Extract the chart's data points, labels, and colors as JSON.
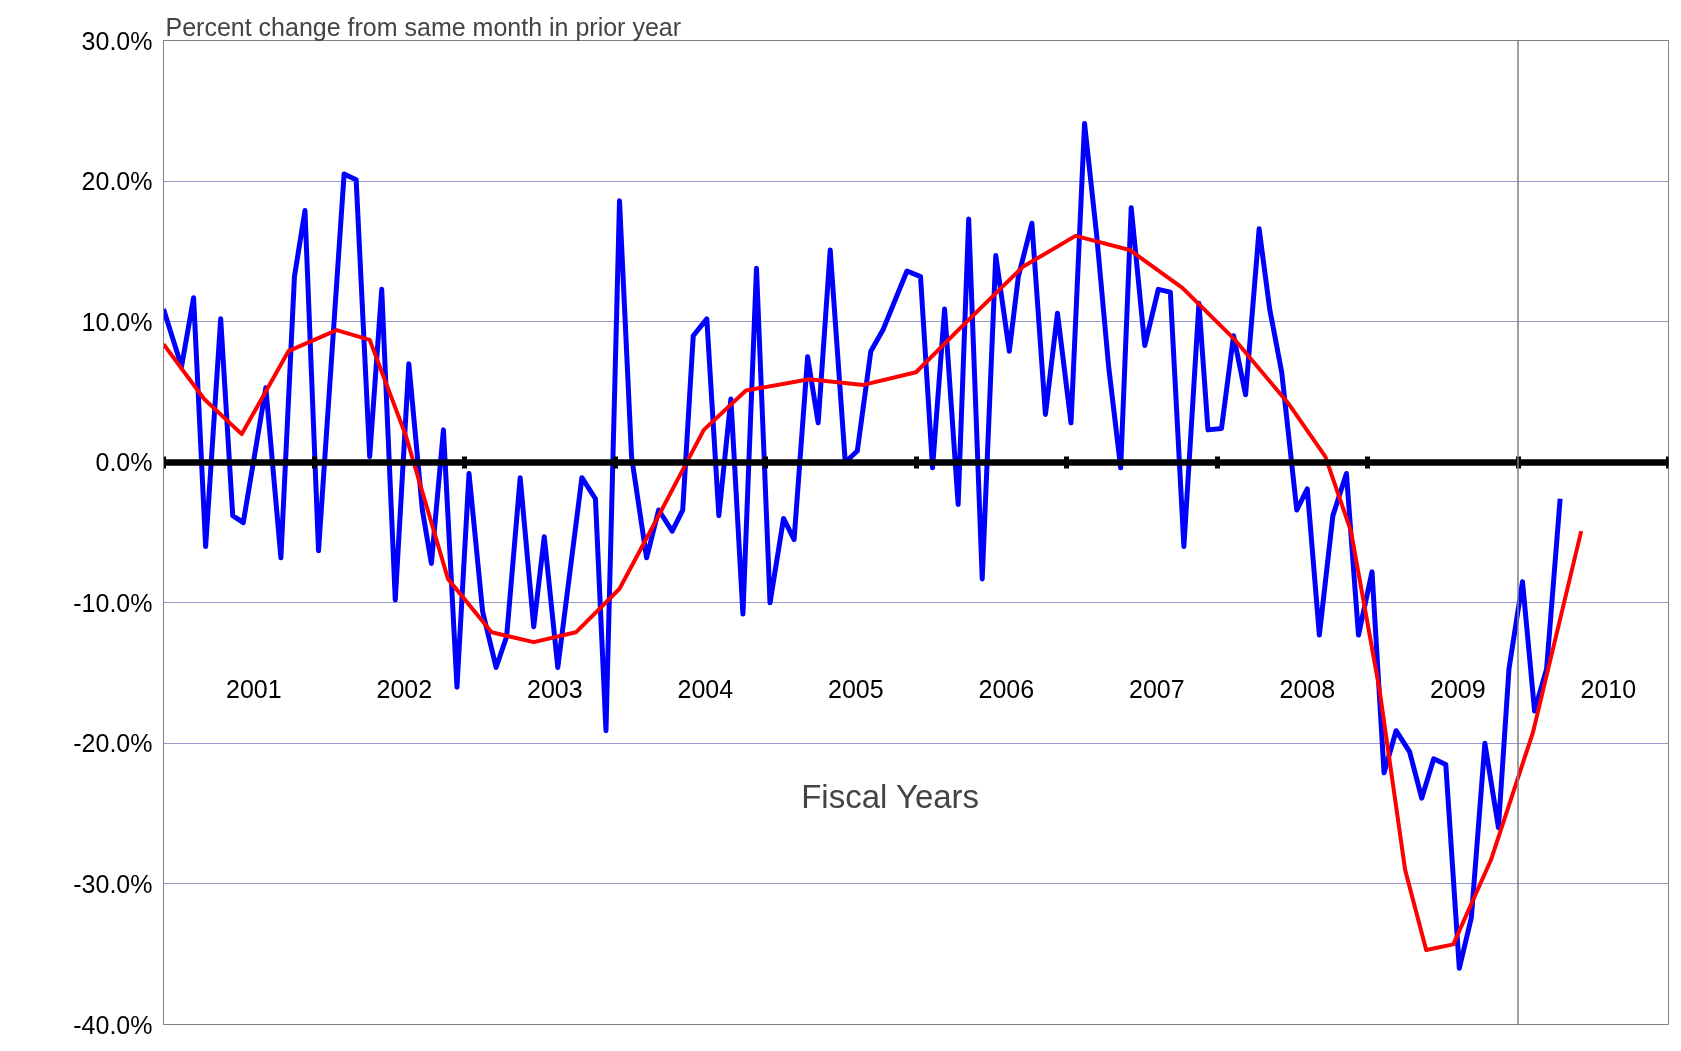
{
  "chart_data": {
    "type": "line",
    "title": "Percent change from same month in prior year",
    "xlabel": "Fiscal Years",
    "xlim": [
      2000.4,
      2010.4
    ],
    "ylim": [
      -40,
      30
    ],
    "xticks": [
      {
        "value": 2000.4,
        "label": null
      },
      {
        "value": 2001.4,
        "label": null
      },
      {
        "value": 2002.4,
        "label": null
      },
      {
        "value": 2003.4,
        "label": null
      },
      {
        "value": 2004.4,
        "label": null
      },
      {
        "value": 2005.4,
        "label": null
      },
      {
        "value": 2006.4,
        "label": null
      },
      {
        "value": 2007.4,
        "label": null
      },
      {
        "value": 2008.4,
        "label": null
      },
      {
        "value": 2009.4,
        "label": null
      },
      {
        "value": 2010.4,
        "label": null
      },
      2001,
      2002,
      2003,
      2004,
      2005,
      2006,
      2007,
      2008,
      2009,
      2010
    ],
    "yticks": [
      {
        "value": 30,
        "label": "30.0%"
      },
      {
        "value": 20,
        "label": "20.0%"
      },
      {
        "value": 10,
        "label": "10.0%"
      },
      {
        "value": 0,
        "label": "0.0%"
      },
      {
        "value": -10,
        "label": "-10.0%"
      },
      {
        "value": -20,
        "label": "-20.0%"
      },
      {
        "value": -30,
        "label": "-30.0%"
      },
      {
        "value": -40,
        "label": "-40.0%"
      }
    ],
    "grid": "y",
    "line_style": "solid",
    "marker": "none",
    "series": [
      {
        "color": "#0000ff",
        "x": [
          2000.4,
          2000.52,
          2000.6,
          2000.68,
          2000.78,
          2000.86,
          2000.93,
          2001.08,
          2001.18,
          2001.27,
          2001.34,
          2001.43,
          2001.6,
          2001.68,
          2001.77,
          2001.85,
          2001.94,
          2002.03,
          2002.12,
          2002.18,
          2002.26,
          2002.35,
          2002.43,
          2002.52,
          2002.61,
          2002.68,
          2002.77,
          2002.86,
          2002.93,
          2003.02,
          2003.18,
          2003.27,
          2003.34,
          2003.43,
          2003.51,
          2003.61,
          2003.69,
          2003.78,
          2003.85,
          2003.92,
          2004.01,
          2004.09,
          2004.17,
          2004.25,
          2004.34,
          2004.43,
          2004.52,
          2004.59,
          2004.68,
          2004.75,
          2004.83,
          2004.93,
          2005.01,
          2005.1,
          2005.18,
          2005.34,
          2005.43,
          2005.51,
          2005.59,
          2005.68,
          2005.75,
          2005.84,
          2005.93,
          2006.02,
          2006.08,
          2006.17,
          2006.26,
          2006.34,
          2006.43,
          2006.52,
          2006.6,
          2006.68,
          2006.76,
          2006.83,
          2006.92,
          2007.01,
          2007.09,
          2007.18,
          2007.28,
          2007.34,
          2007.43,
          2007.51,
          2007.59,
          2007.68,
          2007.75,
          2007.83,
          2007.93,
          2008.0,
          2008.08,
          2008.17,
          2008.26,
          2008.34,
          2008.43,
          2008.51,
          2008.59,
          2008.68,
          2008.76,
          2008.84,
          2008.92,
          2009.01,
          2009.09,
          2009.18,
          2009.27,
          2009.34,
          2009.43,
          2009.51,
          2009.59,
          2009.68
        ],
        "values": [
          10.9,
          6.8,
          11.7,
          -6,
          10.2,
          -3.8,
          -4.3,
          5.3,
          -6.8,
          13.2,
          17.9,
          -6.3,
          20.5,
          20.1,
          0.4,
          12.3,
          -9.8,
          7,
          -3.4,
          -7.2,
          2.3,
          -16,
          -0.8,
          -10.6,
          -14.6,
          -12.4,
          -1.1,
          -11.7,
          -5.3,
          -14.6,
          -1.1,
          -2.6,
          -19.1,
          18.6,
          0.4,
          -6.8,
          -3.4,
          -4.9,
          -3.4,
          9,
          10.2,
          -3.8,
          4.5,
          -10.8,
          13.8,
          -10,
          -4,
          -5.5,
          7.5,
          2.8,
          15.1,
          0,
          0.8,
          7.9,
          9.4,
          13.6,
          13.2,
          -0.4,
          10.9,
          -3,
          17.3,
          -8.3,
          14.7,
          7.9,
          13.2,
          17,
          3.4,
          10.6,
          2.8,
          24.1,
          16.2,
          6.8,
          -0.4,
          18.1,
          8.3,
          12.3,
          12.1,
          -6,
          11.3,
          2.3,
          2.4,
          9,
          4.8,
          16.6,
          10.9,
          6.4,
          -3.4,
          -1.9,
          -12.3,
          -3.8,
          -0.8,
          -12.3,
          -7.8,
          -22.1,
          -19.1,
          -20.6,
          -23.9,
          -21.1,
          -21.5,
          -36,
          -32.4,
          -20,
          -26,
          -14.7,
          -8.5,
          -17.7,
          -14.7,
          -2.6
        ]
      },
      {
        "color": "#ff0000",
        "x": [
          2000.4,
          2000.67,
          2000.92,
          2001.23,
          2001.55,
          2001.77,
          2002.01,
          2002.29,
          2002.58,
          2002.86,
          2003.14,
          2003.43,
          2003.71,
          2003.99,
          2004.27,
          2004.69,
          2005.05,
          2005.4,
          2005.68,
          2006.11,
          2006.46,
          2006.82,
          2007.17,
          2007.52,
          2007.88,
          2008.12,
          2008.29,
          2008.48,
          2008.65,
          2008.79,
          2008.97,
          2009.22,
          2009.5,
          2009.82
        ],
        "values": [
          8.4,
          4.5,
          2,
          7.9,
          9.4,
          8.7,
          1.9,
          -8.3,
          -12.1,
          -12.8,
          -12.1,
          -9,
          -3.4,
          2.3,
          5.1,
          5.9,
          5.5,
          6.4,
          9.4,
          13.9,
          16.1,
          15.1,
          12.4,
          8.7,
          4.1,
          0.4,
          -4.9,
          -16.2,
          -29,
          -34.7,
          -34.3,
          -28.3,
          -19.2,
          -4.9
        ]
      }
    ],
    "ref_lines": [
      {
        "axis": "x",
        "value": 2009.4,
        "color": "#808080"
      }
    ]
  }
}
